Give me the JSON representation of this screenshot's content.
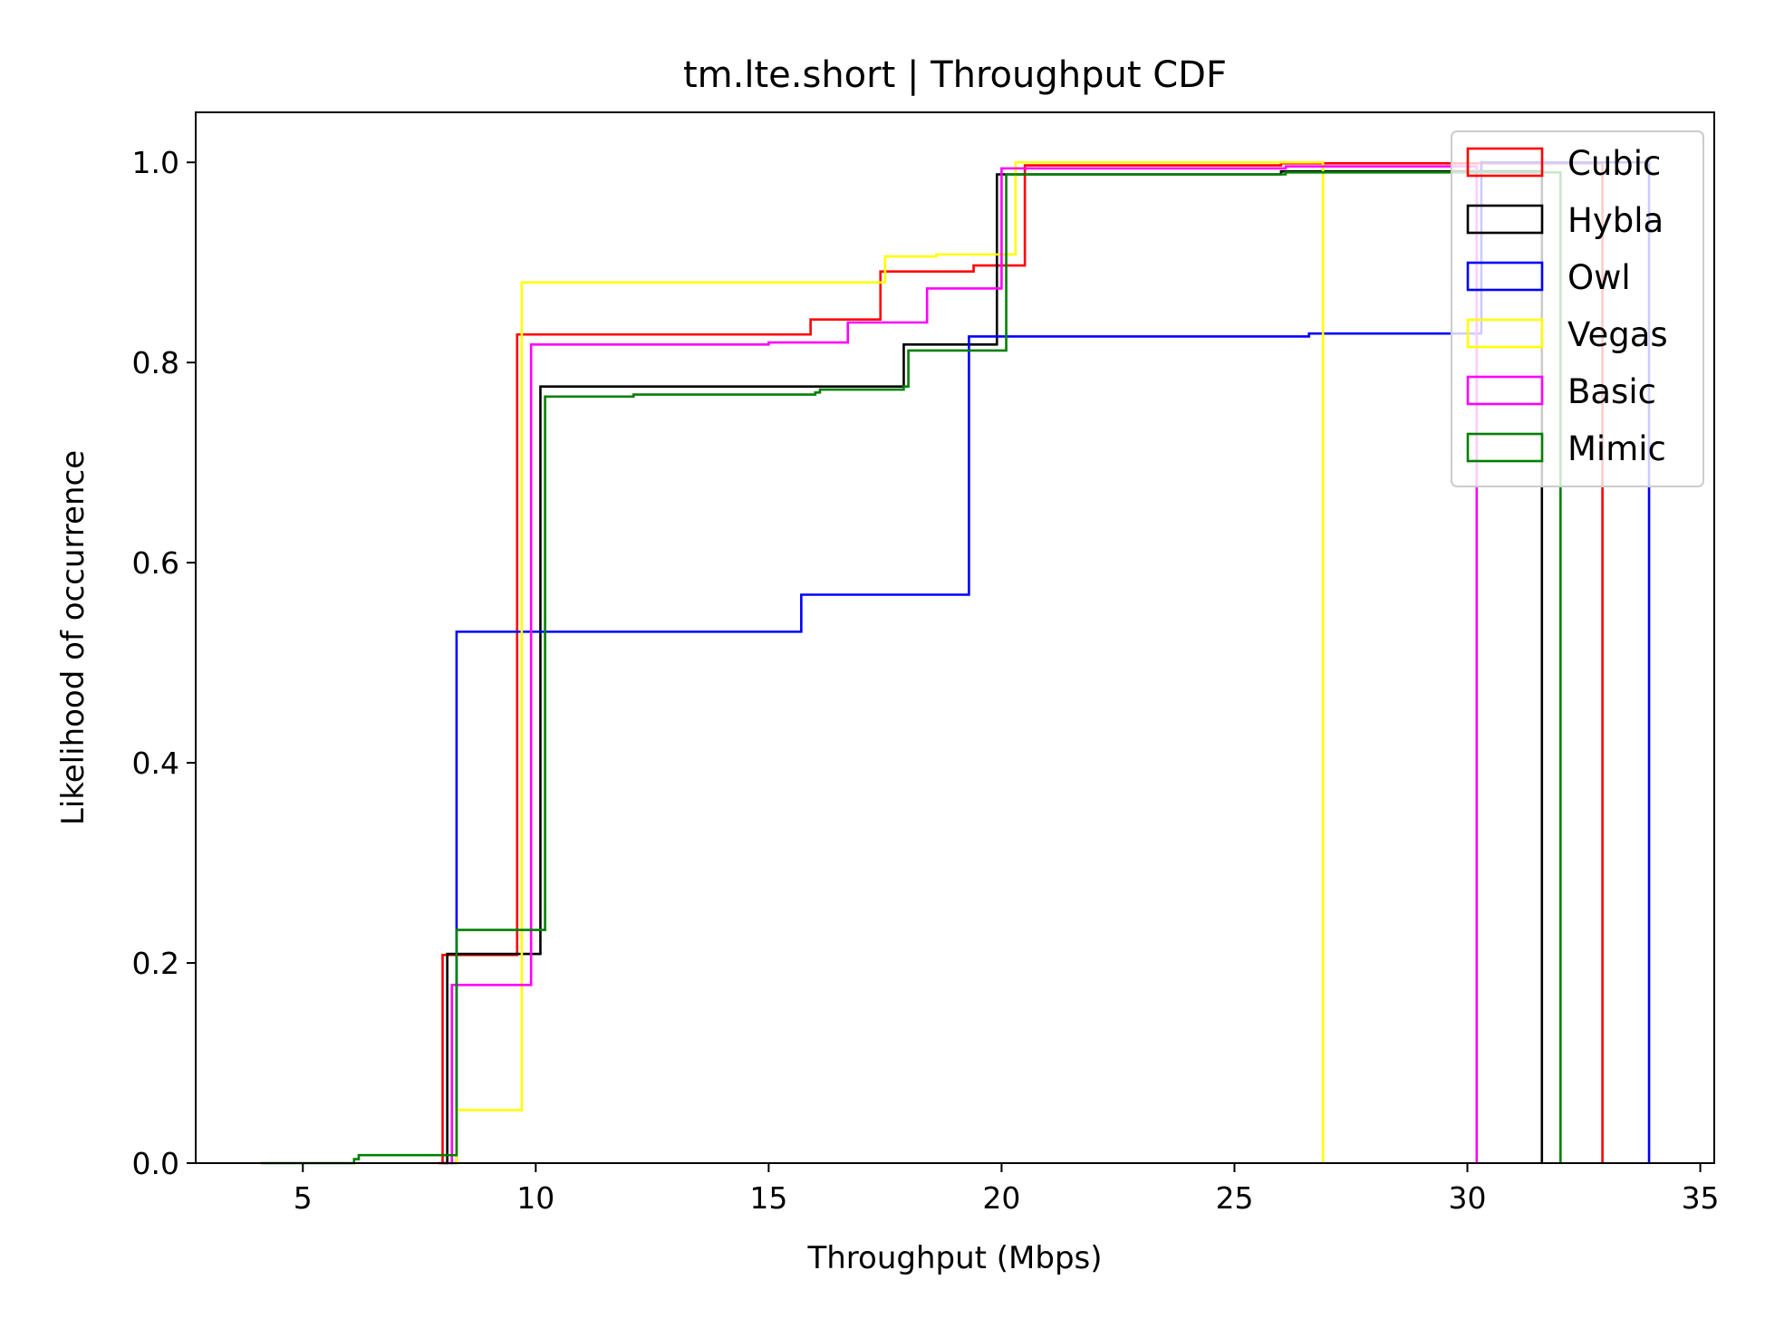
{
  "chart_data": {
    "type": "line",
    "step": true,
    "title": "tm.lte.short | Throughput CDF",
    "xlabel": "Throughput (Mbps)",
    "ylabel": "Likelihood of occurrence",
    "xlim": [
      2.7,
      35.3
    ],
    "ylim": [
      0,
      1.05
    ],
    "xticks": [
      5,
      10,
      15,
      20,
      25,
      30,
      35
    ],
    "xtick_labels": [
      "5",
      "10",
      "15",
      "20",
      "25",
      "30",
      "35"
    ],
    "yticks": [
      0.0,
      0.2,
      0.4,
      0.6,
      0.8,
      1.0
    ],
    "ytick_labels": [
      "0.0",
      "0.2",
      "0.4",
      "0.6",
      "0.8",
      "1.0"
    ],
    "legend_position": "top-right",
    "series": [
      {
        "name": "Cubic",
        "color": "#ff0000",
        "x": [
          7.9,
          8.0,
          9.5,
          9.6,
          15.8,
          15.9,
          17.3,
          17.4,
          18.3,
          18.4,
          19.4,
          20.4,
          20.5,
          25.8,
          26.0,
          32.9
        ],
        "y": [
          0,
          0.208,
          0.208,
          0.828,
          0.828,
          0.843,
          0.843,
          0.891,
          0.891,
          0.891,
          0.897,
          0.897,
          0.997,
          0.997,
          0.999,
          0.999
        ]
      },
      {
        "name": "Hybla",
        "color": "#000000",
        "x": [
          8.0,
          8.1,
          10.0,
          10.1,
          17.8,
          17.9,
          19.8,
          19.9,
          25.8,
          26.0,
          31.6
        ],
        "y": [
          0,
          0.209,
          0.209,
          0.776,
          0.776,
          0.818,
          0.818,
          0.988,
          0.988,
          0.991,
          0.991
        ]
      },
      {
        "name": "Owl",
        "color": "#0000ff",
        "x": [
          8.2,
          8.3,
          15.6,
          15.7,
          19.2,
          19.3,
          26.5,
          26.6,
          30.2,
          30.3,
          33.9
        ],
        "y": [
          0,
          0.531,
          0.531,
          0.568,
          0.568,
          0.826,
          0.826,
          0.829,
          0.829,
          1.0,
          1.0
        ]
      },
      {
        "name": "Vegas",
        "color": "#ffff00",
        "x": [
          8.2,
          8.3,
          9.6,
          9.7,
          17.4,
          17.5,
          18.5,
          18.6,
          20.2,
          20.3,
          26.9
        ],
        "y": [
          0,
          0.053,
          0.053,
          0.88,
          0.88,
          0.906,
          0.906,
          0.908,
          0.908,
          1.0,
          1.0
        ]
      },
      {
        "name": "Basic",
        "color": "#ff00ff",
        "x": [
          8.1,
          8.2,
          9.8,
          9.9,
          14.9,
          15.0,
          16.6,
          16.7,
          18.3,
          18.4,
          19.9,
          20.0,
          26.0,
          26.1,
          30.2
        ],
        "y": [
          0,
          0.178,
          0.178,
          0.818,
          0.818,
          0.82,
          0.82,
          0.84,
          0.84,
          0.874,
          0.874,
          0.994,
          0.994,
          0.996,
          0.996
        ]
      },
      {
        "name": "Mimic",
        "color": "#008000",
        "x": [
          4.1,
          6.1,
          6.2,
          8.2,
          8.3,
          10.1,
          10.2,
          12.0,
          12.1,
          16.0,
          16.1,
          17.9,
          18.0,
          20.0,
          20.1,
          26.0,
          26.1,
          32.0
        ],
        "y": [
          0,
          0.004,
          0.008,
          0.008,
          0.233,
          0.233,
          0.766,
          0.766,
          0.768,
          0.77,
          0.773,
          0.776,
          0.812,
          0.812,
          0.988,
          0.988,
          0.99,
          0.99
        ]
      }
    ]
  }
}
